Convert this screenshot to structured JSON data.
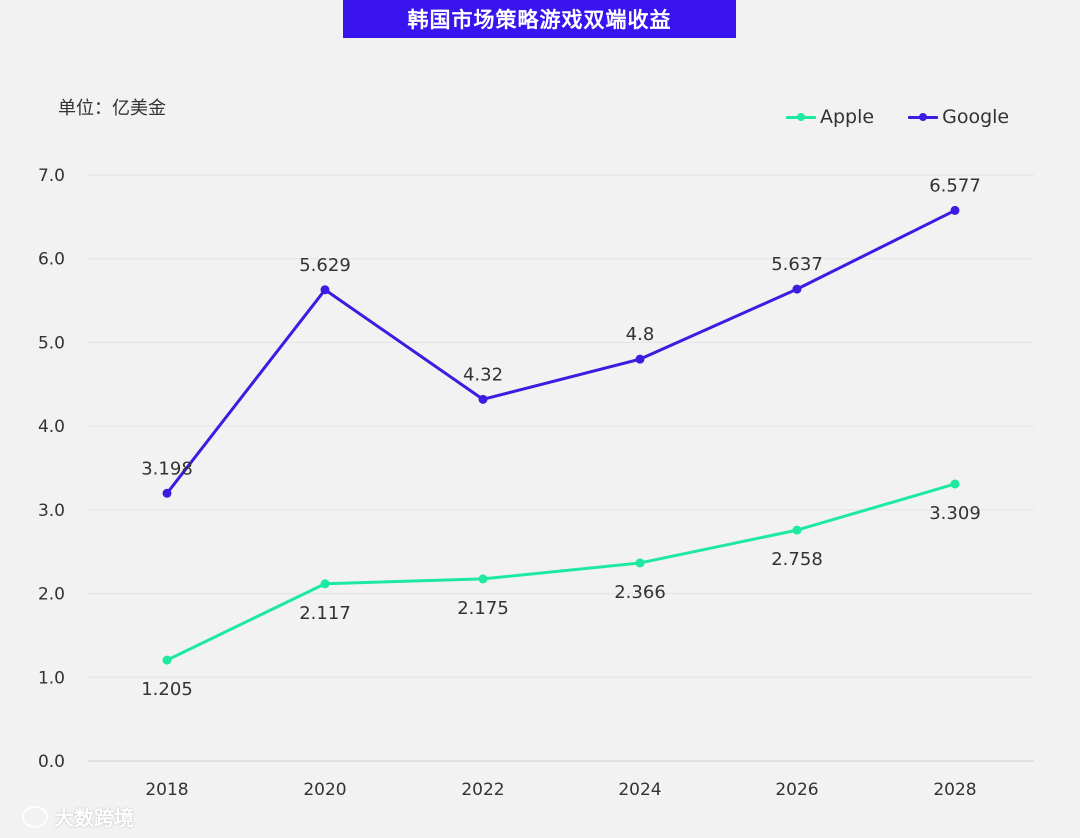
{
  "title": "韩国市场策略游戏双端收益",
  "unit_label": "单位：亿美金",
  "watermark": "大数跨境",
  "colors": {
    "apple": "#1de9a0",
    "google": "#3a1de0",
    "title_bg": "#3a14ef",
    "grid": "#e3e3e3",
    "axis": "#cfcfcf"
  },
  "chart_data": {
    "type": "line",
    "x": [
      "2018",
      "2020",
      "2022",
      "2024",
      "2026",
      "2028"
    ],
    "ylim": [
      0,
      7
    ],
    "yticks": [
      "0.0",
      "1.0",
      "2.0",
      "3.0",
      "4.0",
      "5.0",
      "6.0",
      "7.0"
    ],
    "legend_position": "top-right",
    "grid": true,
    "series": [
      {
        "name": "Apple",
        "color": "#1de9a0",
        "values": [
          1.205,
          2.117,
          2.175,
          2.366,
          2.758,
          3.309
        ],
        "labels": [
          "1.205",
          "2.117",
          "2.175",
          "2.366",
          "2.758",
          "3.309"
        ],
        "label_position": "below"
      },
      {
        "name": "Google",
        "color": "#3a1de0",
        "values": [
          3.198,
          5.629,
          4.32,
          4.8,
          5.637,
          6.577
        ],
        "labels": [
          "3.198",
          "5.629",
          "4.32",
          "4.8",
          "5.637",
          "6.577"
        ],
        "label_position": "above"
      }
    ]
  }
}
